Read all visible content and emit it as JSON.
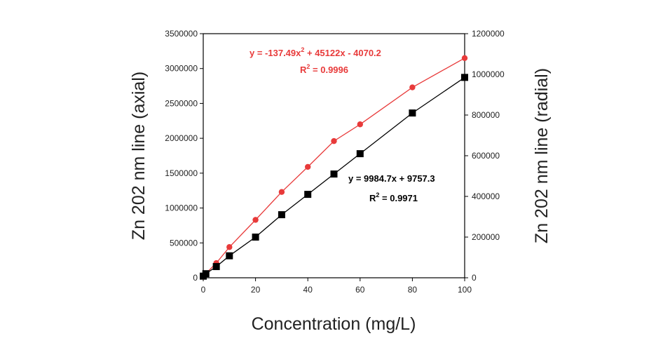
{
  "chart_data": {
    "type": "scatter",
    "xlabel": "Concentration (mg/L)",
    "ylabel_left": "Zn 202 nm line (axial)",
    "ylabel_right": "Zn 202 nm line (radial)",
    "xlim": [
      0,
      100
    ],
    "ylim_left": [
      0,
      3500000
    ],
    "ylim_right": [
      0,
      1200000
    ],
    "x_ticks": [
      "0",
      "20",
      "40",
      "60",
      "80",
      "100"
    ],
    "y_left_ticks": [
      "0",
      "500000",
      "1000000",
      "1500000",
      "2000000",
      "2500000",
      "3000000",
      "3500000"
    ],
    "y_right_ticks": [
      "0",
      "200000",
      "400000",
      "600000",
      "800000",
      "1000000",
      "1200000"
    ],
    "grid": false,
    "series": [
      {
        "axis": "left",
        "color": "#e83a3a",
        "marker": "circle",
        "x": [
          0,
          1,
          5,
          10,
          20,
          30,
          40,
          50,
          60,
          80,
          100
        ],
        "y": [
          15000,
          60000,
          210000,
          440000,
          830000,
          1230000,
          1590000,
          1960000,
          2200000,
          2730000,
          3150000
        ]
      },
      {
        "axis": "right",
        "color": "#000000",
        "marker": "square",
        "x": [
          0,
          1,
          5,
          10,
          20,
          30,
          40,
          50,
          60,
          80,
          100
        ],
        "y": [
          8000,
          20000,
          55000,
          108000,
          200000,
          310000,
          410000,
          510000,
          610000,
          810000,
          985000
        ]
      }
    ],
    "annotations": {
      "red_eq": "y = -137.49x",
      "red_eq_sup": "2",
      "red_eq_tail": " + 45122x - 4070.2",
      "red_r2_lead": "R",
      "red_r2_sup": "2",
      "red_r2_tail": " = 0.9996",
      "black_eq": "y = 9984.7x + 9757.3",
      "black_r2_lead": "R",
      "black_r2_sup": "2",
      "black_r2_tail": " = 0.9971"
    }
  }
}
